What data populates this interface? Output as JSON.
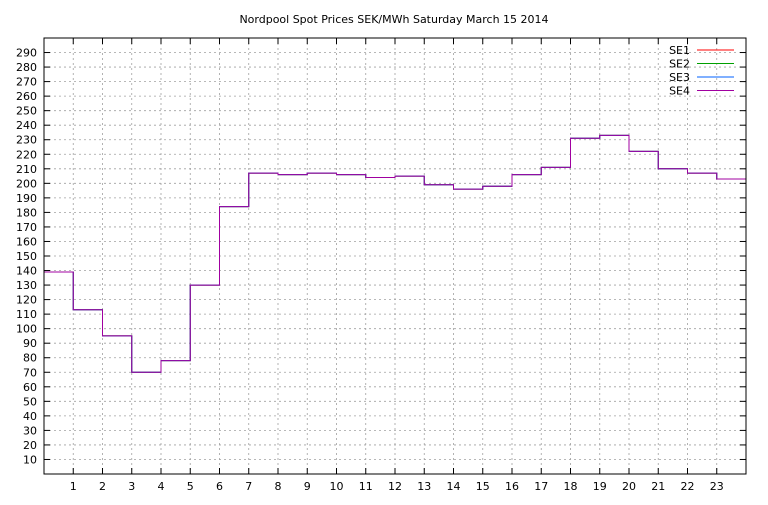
{
  "chart_data": {
    "type": "line",
    "step": true,
    "title": "Nordpool Spot Prices SEK/MWh Saturday March 15 2014",
    "xlabel": "",
    "ylabel": "",
    "xlim": [
      0,
      24
    ],
    "ylim": [
      0,
      300
    ],
    "grid": true,
    "legend_position": "top-right",
    "x_ticks": [
      1,
      2,
      3,
      4,
      5,
      6,
      7,
      8,
      9,
      10,
      11,
      12,
      13,
      14,
      15,
      16,
      17,
      18,
      19,
      20,
      21,
      22,
      23
    ],
    "y_ticks": [
      10,
      20,
      30,
      40,
      50,
      60,
      70,
      80,
      90,
      100,
      110,
      120,
      130,
      140,
      150,
      160,
      170,
      180,
      190,
      200,
      210,
      220,
      230,
      240,
      250,
      260,
      270,
      280,
      290
    ],
    "hours": [
      0,
      1,
      2,
      3,
      4,
      5,
      6,
      7,
      8,
      9,
      10,
      11,
      12,
      13,
      14,
      15,
      16,
      17,
      18,
      19,
      20,
      21,
      22,
      23
    ],
    "series": [
      {
        "name": "SE1",
        "color": "#ff0000",
        "values": [
          139,
          113,
          95,
          70,
          78,
          130,
          184,
          207,
          206,
          207,
          206,
          204,
          205,
          199,
          196,
          198,
          206,
          211,
          231,
          233,
          222,
          210,
          207,
          203
        ]
      },
      {
        "name": "SE2",
        "color": "#00a000",
        "values": [
          139,
          113,
          95,
          70,
          78,
          130,
          184,
          207,
          206,
          207,
          206,
          204,
          205,
          199,
          196,
          198,
          206,
          211,
          231,
          233,
          222,
          210,
          207,
          203
        ]
      },
      {
        "name": "SE3",
        "color": "#0060ff",
        "values": [
          139,
          113,
          95,
          70,
          78,
          130,
          184,
          207,
          206,
          207,
          206,
          204,
          205,
          199,
          196,
          198,
          206,
          211,
          231,
          233,
          222,
          210,
          207,
          203
        ]
      },
      {
        "name": "SE4",
        "color": "#a000a0",
        "values": [
          139,
          113,
          95,
          70,
          78,
          130,
          184,
          207,
          206,
          207,
          206,
          204,
          205,
          199,
          196,
          198,
          206,
          211,
          231,
          233,
          222,
          210,
          207,
          203
        ]
      }
    ]
  }
}
